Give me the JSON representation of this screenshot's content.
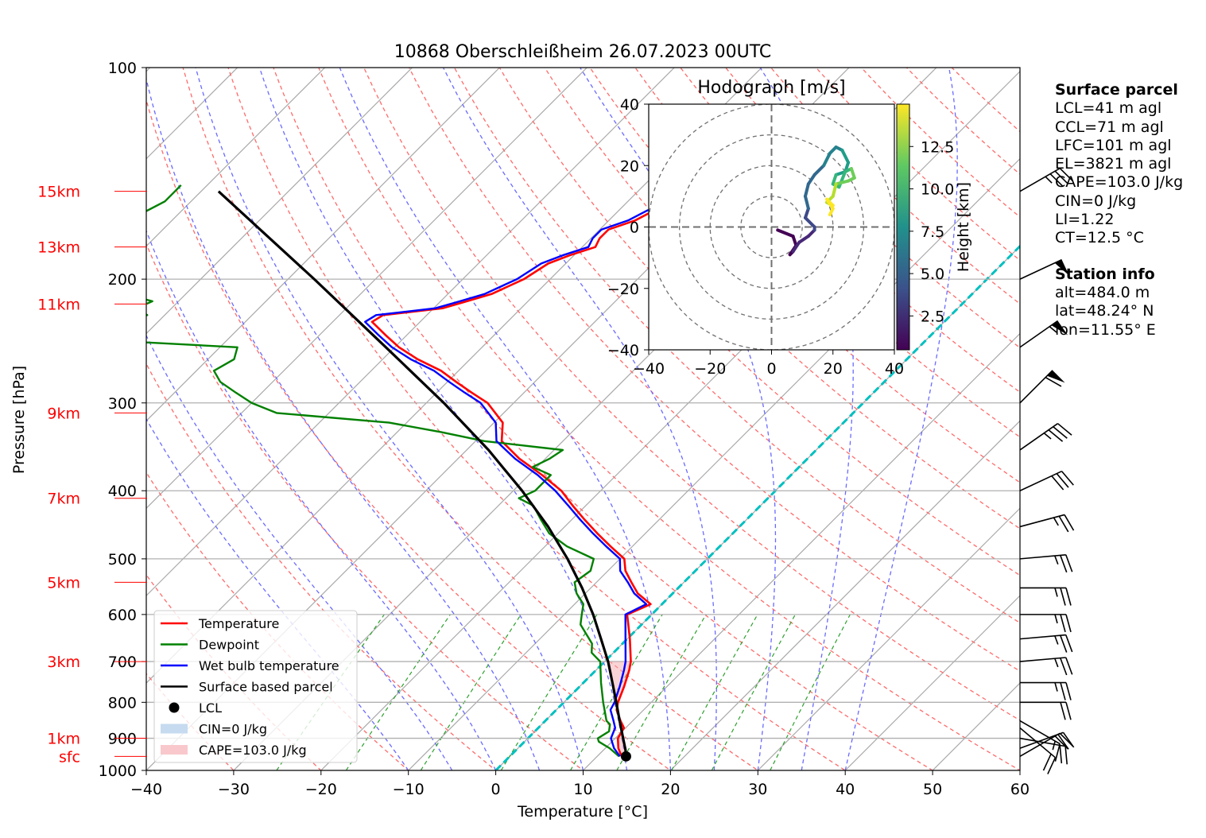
{
  "chart_data": {
    "type": "line",
    "title": "10868 Oberschleißheim 26.07.2023 00UTC",
    "xlabel": "Temperature [°C]",
    "ylabel": "Pressure [hPa]",
    "xlim": [
      -40,
      60
    ],
    "ylim_hpa": [
      1000,
      100
    ],
    "y_log_scale": true,
    "skew_t": true,
    "grid": true,
    "x_ticks": [
      "−40",
      "−30",
      "−20",
      "−10",
      "0",
      "10",
      "20",
      "30",
      "40",
      "50",
      "60"
    ],
    "y_ticks": [
      "100",
      "200",
      "300",
      "400",
      "500",
      "600",
      "700",
      "800",
      "900",
      "1000"
    ],
    "height_labels": [
      {
        "label": "15km",
        "p": 150
      },
      {
        "label": "13km",
        "p": 180
      },
      {
        "label": "11km",
        "p": 217
      },
      {
        "label": "9km",
        "p": 310
      },
      {
        "label": "7km",
        "p": 410
      },
      {
        "label": "5km",
        "p": 540
      },
      {
        "label": "3km",
        "p": 700
      },
      {
        "label": "1km",
        "p": 900
      },
      {
        "label": "sfc",
        "p": 955
      }
    ],
    "series": [
      {
        "name": "Temperature",
        "color": "#ff0000",
        "p": [
          955,
          930,
          900,
          870,
          850,
          820,
          800,
          760,
          720,
          700,
          650,
          600,
          580,
          560,
          540,
          520,
          500,
          480,
          460,
          440,
          420,
          400,
          380,
          360,
          340,
          320,
          300,
          290,
          280,
          270,
          260,
          250,
          240,
          230,
          225,
          220,
          215,
          210,
          200,
          190,
          185,
          180,
          175,
          170,
          165,
          160,
          155,
          150,
          147
        ],
        "t": [
          12.8,
          11.5,
          10.3,
          9.8,
          8.6,
          6.9,
          6.2,
          5.1,
          3.8,
          3.0,
          0.3,
          -2.8,
          -1.3,
          -4.0,
          -6.0,
          -8.0,
          -9.5,
          -12.5,
          -15.5,
          -18.5,
          -21.5,
          -24.5,
          -28.5,
          -33.0,
          -37.0,
          -39.0,
          -43.0,
          -46.0,
          -49.0,
          -52.0,
          -56.0,
          -59.5,
          -62.5,
          -65.5,
          -65.0,
          -59.0,
          -57.0,
          -55.0,
          -53.0,
          -52.0,
          -50.5,
          -48.5,
          -49.0,
          -49.0,
          -47.0,
          -46.0,
          -44.5,
          -40.5,
          -40.5
        ]
      },
      {
        "name": "Dewpoint",
        "color": "#008000",
        "p": [
          955,
          930,
          910,
          900,
          880,
          860,
          850,
          800,
          750,
          700,
          680,
          660,
          620,
          600,
          580,
          560,
          540,
          520,
          500,
          480,
          460,
          440,
          420,
          410,
          400,
          380,
          370,
          360,
          350,
          340,
          330,
          320,
          310,
          300,
          290,
          280,
          270,
          260,
          250,
          245,
          240,
          230,
          225,
          220,
          215,
          210,
          205,
          200,
          190,
          180,
          175,
          170,
          165,
          160,
          155,
          150,
          147
        ],
        "t": [
          12.5,
          10.5,
          8.5,
          8.0,
          8.5,
          7.8,
          7.0,
          4.5,
          2.0,
          -0.5,
          -2.5,
          -3.5,
          -7.0,
          -8.0,
          -9.0,
          -11.0,
          -12.5,
          -12.0,
          -13.0,
          -17.5,
          -21.0,
          -23.5,
          -26.0,
          -28.5,
          -27.5,
          -27.5,
          -30.5,
          -29.5,
          -29.0,
          -39.0,
          -45.0,
          -52.0,
          -66.0,
          -70.0,
          -73.0,
          -76.0,
          -78.0,
          -77.0,
          -78.0,
          -92.0,
          -93.0,
          -94.0,
          -92.0,
          -94.0,
          -93.0,
          -97.0,
          -98.0,
          -98.0,
          -100.0,
          -102.0,
          -103.0,
          -103.0,
          -104.0,
          -104.0,
          -103.0,
          -103.0,
          -103.0
        ]
      },
      {
        "name": "Wet bulb temperature",
        "color": "#0000ff",
        "p": [
          955,
          930,
          900,
          870,
          850,
          820,
          800,
          760,
          720,
          700,
          650,
          600,
          580,
          560,
          540,
          520,
          500,
          480,
          460,
          440,
          420,
          400,
          380,
          360,
          340,
          320,
          300,
          290,
          280,
          270,
          260,
          250,
          240,
          230,
          225,
          220,
          215,
          210,
          200,
          190,
          185,
          180,
          175,
          170,
          165,
          160,
          155,
          150,
          147
        ],
        "t": [
          12.6,
          11.0,
          9.5,
          8.8,
          7.8,
          6.2,
          5.8,
          4.6,
          3.2,
          2.4,
          -0.2,
          -3.0,
          -1.8,
          -4.4,
          -6.4,
          -8.6,
          -10.0,
          -13.0,
          -16.0,
          -19.0,
          -22.0,
          -25.2,
          -29.0,
          -33.5,
          -37.6,
          -39.8,
          -43.8,
          -46.8,
          -49.8,
          -52.8,
          -56.8,
          -60.3,
          -63.3,
          -66.3,
          -65.8,
          -59.8,
          -57.8,
          -55.8,
          -53.8,
          -52.8,
          -51.3,
          -49.3,
          -49.8,
          -49.8,
          -47.8,
          -46.8,
          -45.3,
          -41.3,
          -41.3
        ]
      },
      {
        "name": "Surface based parcel",
        "color": "#000000",
        "p": [
          955,
          935,
          900,
          850,
          800,
          750,
          700,
          650,
          600,
          550,
          500,
          450,
          400,
          350,
          300,
          250,
          200,
          150
        ],
        "t": [
          13.3,
          12.5,
          10.9,
          8.5,
          6.0,
          3.3,
          0.4,
          -3.0,
          -6.7,
          -11.0,
          -16.0,
          -21.9,
          -29.0,
          -37.5,
          -48.0,
          -61.0,
          -77.0,
          -98.0
        ]
      }
    ],
    "lcl": {
      "name": "LCL",
      "p": 955,
      "t": 13.3
    },
    "legend": {
      "placement": "lower-left",
      "entries": [
        "Temperature",
        "Dewpoint",
        "Wet bulb temperature",
        "Surface based parcel",
        "LCL",
        "CIN=0 J/kg",
        "CAPE=103.0 J/kg"
      ]
    },
    "freezing_isotherm": {
      "t": 0,
      "color": "#00c0c0"
    },
    "wind_barbs": [
      {
        "p": 955,
        "spd": 18,
        "dir": 240
      },
      {
        "p": 930,
        "spd": 20,
        "dir": 250
      },
      {
        "p": 900,
        "spd": 22,
        "dir": 280
      },
      {
        "p": 870,
        "spd": 18,
        "dir": 310
      },
      {
        "p": 850,
        "spd": 15,
        "dir": 300
      },
      {
        "p": 800,
        "spd": 20,
        "dir": 270
      },
      {
        "p": 750,
        "spd": 25,
        "dir": 270
      },
      {
        "p": 700,
        "spd": 25,
        "dir": 265
      },
      {
        "p": 650,
        "spd": 25,
        "dir": 265
      },
      {
        "p": 600,
        "spd": 25,
        "dir": 270
      },
      {
        "p": 550,
        "spd": 25,
        "dir": 270
      },
      {
        "p": 500,
        "spd": 25,
        "dir": 265
      },
      {
        "p": 450,
        "spd": 25,
        "dir": 255
      },
      {
        "p": 400,
        "spd": 30,
        "dir": 245
      },
      {
        "p": 350,
        "spd": 35,
        "dir": 235
      },
      {
        "p": 300,
        "spd": 60,
        "dir": 225
      },
      {
        "p": 250,
        "spd": 55,
        "dir": 235
      },
      {
        "p": 200,
        "spd": 50,
        "dir": 245
      },
      {
        "p": 150,
        "spd": 35,
        "dir": 240
      }
    ],
    "hodograph": {
      "title": "Hodograph [m/s]",
      "xlim": [
        -40,
        40
      ],
      "ylim": [
        -40,
        40
      ],
      "x_ticks": [
        "−40",
        "−20",
        "0",
        "20",
        "40"
      ],
      "y_ticks": [
        "40",
        "20",
        "0",
        "−20",
        "−40"
      ],
      "rings": [
        10,
        20,
        30,
        40
      ],
      "colorbar": {
        "label": "Height [km]",
        "ticks": [
          "2.5",
          "5.0",
          "7.5",
          "10.0",
          "12.5"
        ],
        "range": [
          0.5,
          15
        ]
      },
      "u": [
        2,
        7,
        8,
        6,
        7,
        9,
        12,
        14,
        14,
        11,
        12,
        11,
        12,
        14,
        17,
        19,
        21,
        23,
        25,
        24,
        21,
        20,
        22,
        24,
        26,
        27,
        25,
        21,
        20,
        18,
        20,
        18,
        20,
        19
      ],
      "v": [
        -1,
        -3,
        -6,
        -9,
        -8,
        -5,
        -3,
        -1,
        0,
        3,
        6,
        10,
        14,
        17,
        20,
        24,
        26,
        25,
        21,
        18,
        17,
        14,
        13,
        18,
        19,
        16,
        15,
        14,
        10,
        8,
        7,
        9,
        6,
        4
      ]
    }
  },
  "info": {
    "parcel_header": "Surface parcel",
    "parcel_lines": [
      "LCL=41 m agl",
      "CCL=71 m agl",
      "LFC=101 m agl",
      "EL=3821 m agl",
      "CAPE=103.0 J/kg",
      "CIN=0 J/kg",
      "LI=1.22",
      "CT=12.5 °C"
    ],
    "station_header": "Station info",
    "station_lines": [
      "alt=484.0 m",
      "lat=48.24° N",
      "lon=11.55° E"
    ]
  }
}
